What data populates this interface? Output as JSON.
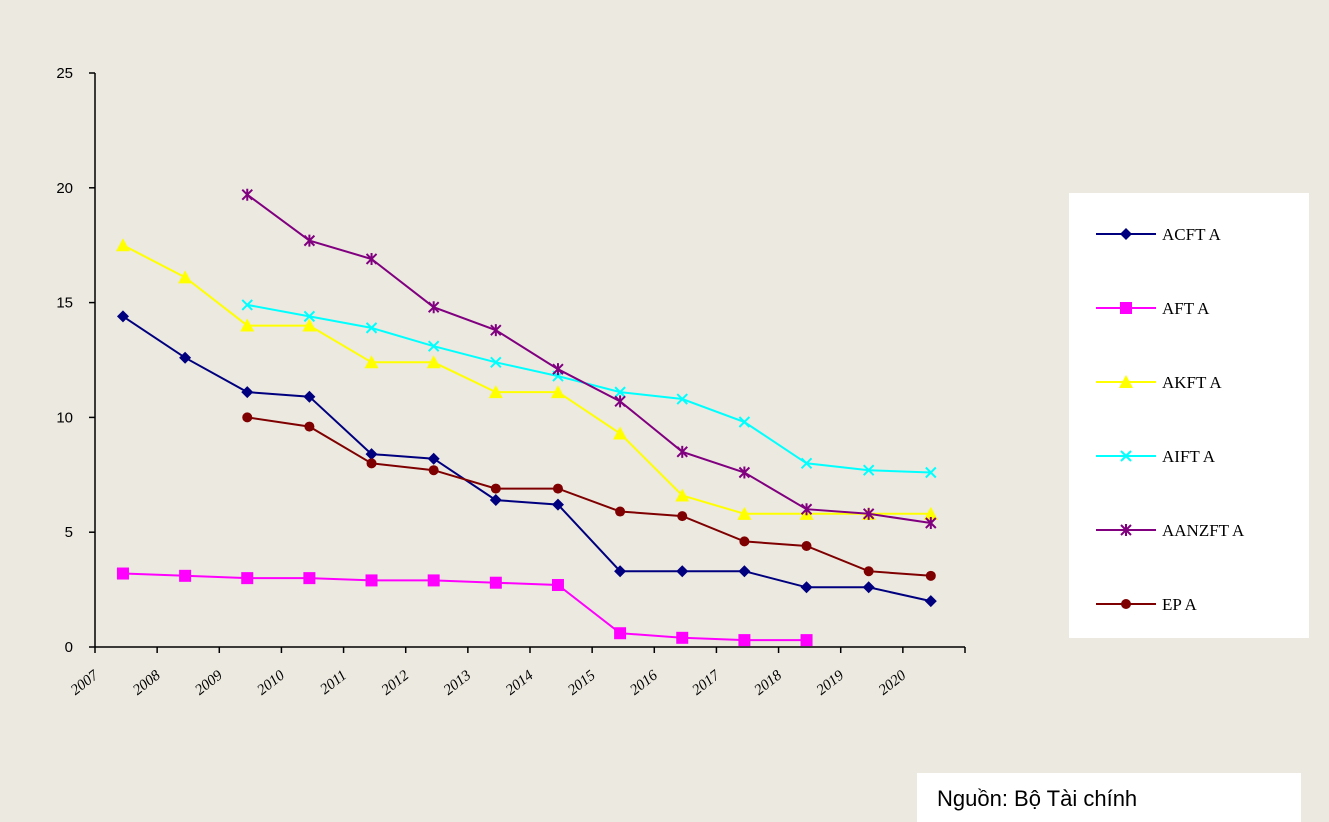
{
  "chart_data": {
    "type": "line",
    "title": "",
    "xlabel": "",
    "ylabel": "",
    "ylim": [
      0,
      25
    ],
    "yticks": [
      "0",
      "5",
      "10",
      "15",
      "20",
      "25"
    ],
    "categories": [
      "2007",
      "2008",
      "2009",
      "2010",
      "2011",
      "2012",
      "2013",
      "2014",
      "2015",
      "2016",
      "2017",
      "2018",
      "2019",
      "2020"
    ],
    "grid": false,
    "legend_position": "right",
    "series": [
      {
        "name": "ACFT A",
        "color": "#00007f",
        "marker": "diamond",
        "values": [
          14.4,
          12.6,
          11.1,
          10.9,
          8.4,
          8.2,
          6.4,
          6.2,
          3.3,
          3.3,
          3.3,
          2.6,
          2.6,
          2.0
        ]
      },
      {
        "name": "AFT A",
        "color": "#ff00ff",
        "marker": "square",
        "values": [
          3.2,
          3.1,
          3.0,
          3.0,
          2.9,
          2.9,
          2.8,
          2.7,
          0.6,
          0.4,
          0.3,
          0.3,
          null,
          null
        ]
      },
      {
        "name": "AKFT A",
        "color": "#ffff00",
        "marker": "triangle",
        "values": [
          17.5,
          16.1,
          14.0,
          14.0,
          12.4,
          12.4,
          11.1,
          11.1,
          9.3,
          6.6,
          5.8,
          5.8,
          5.8,
          5.8
        ]
      },
      {
        "name": "AIFT A",
        "color": "#00ffff",
        "marker": "x",
        "values": [
          null,
          null,
          14.9,
          14.4,
          13.9,
          13.1,
          12.4,
          11.8,
          11.1,
          10.8,
          9.8,
          8.0,
          7.7,
          7.6
        ]
      },
      {
        "name": "AANZFT A",
        "color": "#800080",
        "marker": "star",
        "values": [
          null,
          null,
          19.7,
          17.7,
          16.9,
          14.8,
          13.8,
          12.1,
          10.7,
          8.5,
          7.6,
          6.0,
          5.8,
          5.4
        ]
      },
      {
        "name": "EP A",
        "color": "#7f0000",
        "marker": "circle",
        "values": [
          null,
          null,
          10.0,
          9.6,
          8.0,
          7.7,
          6.9,
          6.9,
          5.9,
          5.7,
          4.6,
          4.4,
          3.3,
          3.1
        ]
      }
    ]
  },
  "source": "Nguồn: Bộ Tài chính"
}
